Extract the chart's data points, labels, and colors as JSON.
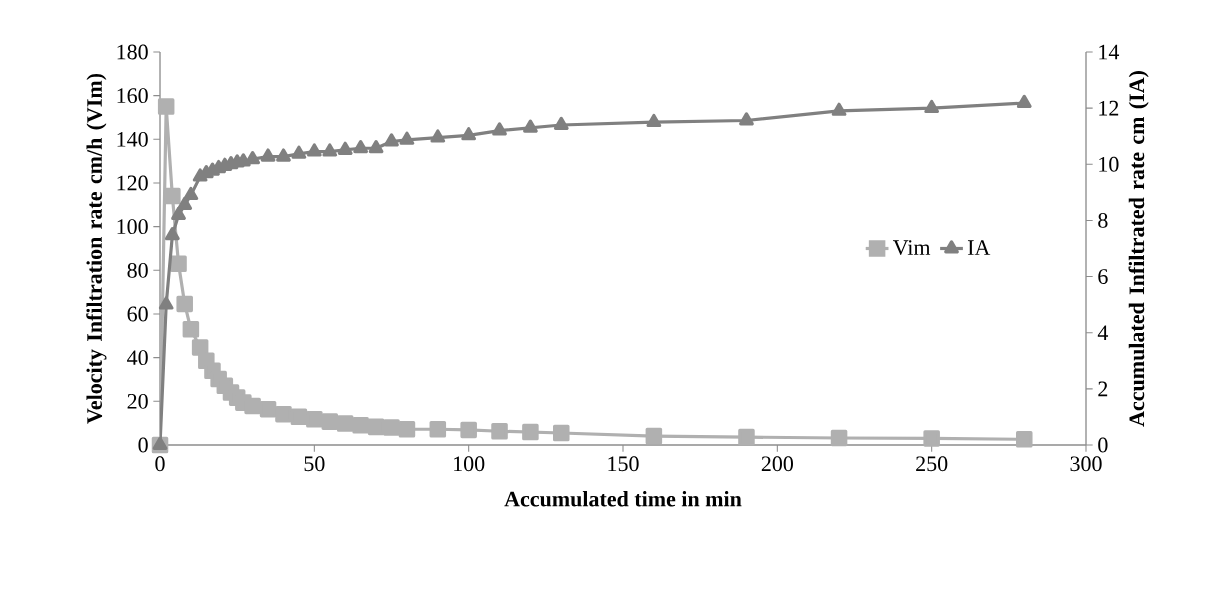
{
  "chart_data": {
    "type": "line",
    "xlabel": "Accumulated time in min",
    "ylabel": "Velocity Infiltration  rate cm/h (VIm)",
    "y2label": "Accumulated Infiltrated rate cm (IA)",
    "x": [
      0,
      2,
      4,
      6,
      8,
      10,
      13,
      15,
      17,
      19,
      21,
      23,
      25,
      27,
      30,
      35,
      40,
      45,
      50,
      55,
      60,
      65,
      70,
      75,
      80,
      90,
      100,
      110,
      120,
      130,
      160,
      190,
      220,
      250,
      280
    ],
    "series": [
      {
        "name": "Vim",
        "color": "#b0b0b0",
        "marker": "square",
        "values": [
          0,
          155,
          114,
          83,
          64.6,
          53,
          44.7,
          38.6,
          34,
          30.2,
          27.1,
          24,
          21.7,
          19.4,
          17.9,
          16.4,
          14.1,
          12.9,
          11.8,
          10.7,
          9.8,
          9.0,
          8.3,
          8.0,
          7.2,
          7.2,
          6.9,
          6.3,
          5.9,
          5.5,
          4.1,
          3.6,
          3.2,
          3.0,
          2.6
        ]
      },
      {
        "name": "IA",
        "color": "#808080",
        "marker": "triangle",
        "axis": "y2",
        "values": [
          0,
          5.0,
          7.47,
          8.19,
          8.55,
          8.9,
          9.56,
          9.68,
          9.77,
          9.86,
          9.94,
          10.0,
          10.06,
          10.1,
          10.18,
          10.27,
          10.27,
          10.37,
          10.45,
          10.45,
          10.51,
          10.57,
          10.57,
          10.81,
          10.87,
          10.95,
          11.03,
          11.2,
          11.3,
          11.4,
          11.5,
          11.56,
          11.9,
          12.0,
          12.18
        ]
      }
    ],
    "xlim": [
      0,
      300
    ],
    "xticks": [
      0,
      50,
      100,
      150,
      200,
      250,
      300
    ],
    "ylim": [
      0,
      180
    ],
    "yticks": [
      0,
      20,
      40,
      60,
      80,
      100,
      120,
      140,
      160,
      180
    ],
    "y2lim": [
      0,
      14
    ],
    "y2ticks": [
      0,
      2,
      4,
      6,
      8,
      10,
      12,
      14
    ],
    "legend": "right",
    "grid": false
  }
}
